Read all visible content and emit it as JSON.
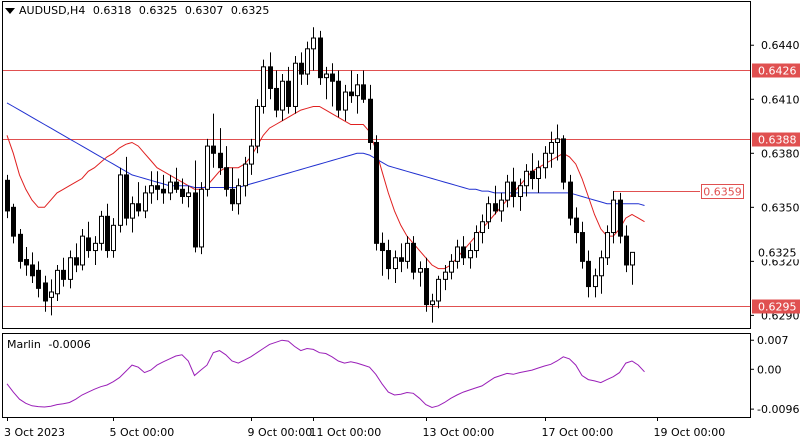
{
  "header": {
    "symbol": "AUDUSD,H4",
    "open": "0.6318",
    "high": "0.6325",
    "low": "0.6307",
    "close": "0.6325"
  },
  "indicator": {
    "name": "Marlin",
    "value": "-0.0006",
    "ticks": [
      "0.007",
      "0.00",
      "-0.0096"
    ],
    "tick_values": [
      0.007,
      0.0,
      -0.0096
    ],
    "color": "#9a1fb8"
  },
  "chart_data": {
    "type": "candlestick",
    "title": "",
    "xlabel": "",
    "ylabel": "",
    "ylim": [
      0.6283,
      0.6464
    ],
    "y_ticks": [
      "0.6440",
      "0.6410",
      "0.6380",
      "0.6350",
      "0.6320",
      "0.6290"
    ],
    "y_tick_values": [
      0.644,
      0.641,
      0.638,
      0.635,
      0.632,
      0.629
    ],
    "x_ticks": [
      "3 Oct 2023",
      "5 Oct 00:00",
      "9 Oct 00:00",
      "11 Oct 00:00",
      "13 Oct 00:00",
      "17 Oct 00:00",
      "19 Oct 00:00"
    ],
    "x_tick_bars": [
      0,
      17,
      39,
      49,
      67,
      86,
      104
    ],
    "candles": [
      [
        0.6365,
        0.6368,
        0.6344,
        0.6348
      ],
      [
        0.635,
        0.6352,
        0.633,
        0.6334
      ],
      [
        0.6335,
        0.6338,
        0.6316,
        0.632
      ],
      [
        0.6321,
        0.6328,
        0.6312,
        0.6318
      ],
      [
        0.6318,
        0.6325,
        0.6308,
        0.6312
      ],
      [
        0.6315,
        0.632,
        0.63,
        0.6305
      ],
      [
        0.6308,
        0.6312,
        0.6292,
        0.6298
      ],
      [
        0.63,
        0.631,
        0.629,
        0.6303
      ],
      [
        0.6302,
        0.6318,
        0.6298,
        0.6315
      ],
      [
        0.6315,
        0.6322,
        0.6306,
        0.631
      ],
      [
        0.631,
        0.6326,
        0.6305,
        0.6322
      ],
      [
        0.6322,
        0.633,
        0.6314,
        0.6318
      ],
      [
        0.6318,
        0.6338,
        0.6315,
        0.6334
      ],
      [
        0.6333,
        0.6342,
        0.6322,
        0.6326
      ],
      [
        0.6326,
        0.6334,
        0.6318,
        0.633
      ],
      [
        0.633,
        0.6348,
        0.6326,
        0.6345
      ],
      [
        0.6345,
        0.6352,
        0.6322,
        0.6326
      ],
      [
        0.6326,
        0.6344,
        0.6322,
        0.634
      ],
      [
        0.634,
        0.6372,
        0.6336,
        0.6368
      ],
      [
        0.6368,
        0.6378,
        0.634,
        0.6344
      ],
      [
        0.6344,
        0.6356,
        0.6336,
        0.6352
      ],
      [
        0.6352,
        0.6364,
        0.6345,
        0.6348
      ],
      [
        0.6348,
        0.6362,
        0.6344,
        0.6358
      ],
      [
        0.6358,
        0.637,
        0.6352,
        0.6362
      ],
      [
        0.6362,
        0.637,
        0.6354,
        0.636
      ],
      [
        0.636,
        0.6368,
        0.6352,
        0.6358
      ],
      [
        0.6358,
        0.6368,
        0.6354,
        0.6364
      ],
      [
        0.6364,
        0.6372,
        0.6358,
        0.636
      ],
      [
        0.636,
        0.6366,
        0.6352,
        0.6356
      ],
      [
        0.6356,
        0.6362,
        0.635,
        0.6358
      ],
      [
        0.6358,
        0.6376,
        0.6325,
        0.6328
      ],
      [
        0.6328,
        0.6364,
        0.6324,
        0.636
      ],
      [
        0.636,
        0.6388,
        0.6356,
        0.6384
      ],
      [
        0.6384,
        0.6402,
        0.6372,
        0.638
      ],
      [
        0.638,
        0.6394,
        0.6368,
        0.6372
      ],
      [
        0.6372,
        0.6384,
        0.6356,
        0.636
      ],
      [
        0.636,
        0.6372,
        0.6348,
        0.6352
      ],
      [
        0.6352,
        0.6366,
        0.6346,
        0.6362
      ],
      [
        0.6362,
        0.6378,
        0.6356,
        0.6374
      ],
      [
        0.6374,
        0.6388,
        0.6368,
        0.6384
      ],
      [
        0.6384,
        0.641,
        0.638,
        0.6406
      ],
      [
        0.6406,
        0.6432,
        0.6402,
        0.6428
      ],
      [
        0.6428,
        0.6436,
        0.641,
        0.6416
      ],
      [
        0.6416,
        0.6426,
        0.64,
        0.6404
      ],
      [
        0.6404,
        0.6424,
        0.6398,
        0.642
      ],
      [
        0.642,
        0.6428,
        0.6402,
        0.6406
      ],
      [
        0.6406,
        0.6434,
        0.6402,
        0.643
      ],
      [
        0.643,
        0.6436,
        0.6418,
        0.6424
      ],
      [
        0.6424,
        0.6442,
        0.6418,
        0.6438
      ],
      [
        0.6438,
        0.645,
        0.6426,
        0.6444
      ],
      [
        0.6444,
        0.6448,
        0.6418,
        0.6422
      ],
      [
        0.6422,
        0.6428,
        0.641,
        0.6424
      ],
      [
        0.6424,
        0.643,
        0.6406,
        0.642
      ],
      [
        0.642,
        0.6426,
        0.64,
        0.6404
      ],
      [
        0.6404,
        0.6418,
        0.6398,
        0.6414
      ],
      [
        0.6414,
        0.6426,
        0.6408,
        0.6412
      ],
      [
        0.6412,
        0.6424,
        0.6402,
        0.6418
      ],
      [
        0.6418,
        0.6426,
        0.6408,
        0.641
      ],
      [
        0.641,
        0.6418,
        0.6382,
        0.6386
      ],
      [
        0.6386,
        0.639,
        0.6326,
        0.633
      ],
      [
        0.633,
        0.6336,
        0.6312,
        0.6326
      ],
      [
        0.6326,
        0.6332,
        0.631,
        0.6316
      ],
      [
        0.6316,
        0.6326,
        0.6308,
        0.6322
      ],
      [
        0.6322,
        0.633,
        0.6314,
        0.632
      ],
      [
        0.632,
        0.6334,
        0.6316,
        0.633
      ],
      [
        0.633,
        0.6334,
        0.631,
        0.6314
      ],
      [
        0.6314,
        0.632,
        0.6306,
        0.6316
      ],
      [
        0.6316,
        0.6322,
        0.6292,
        0.6296
      ],
      [
        0.6296,
        0.6302,
        0.6286,
        0.6298
      ],
      [
        0.6298,
        0.6312,
        0.6294,
        0.631
      ],
      [
        0.631,
        0.6318,
        0.6304,
        0.6314
      ],
      [
        0.6314,
        0.6324,
        0.631,
        0.632
      ],
      [
        0.632,
        0.6332,
        0.6316,
        0.6328
      ],
      [
        0.6328,
        0.6334,
        0.6318,
        0.6322
      ],
      [
        0.6322,
        0.633,
        0.6316,
        0.6326
      ],
      [
        0.6326,
        0.634,
        0.6322,
        0.6336
      ],
      [
        0.6336,
        0.6346,
        0.633,
        0.6342
      ],
      [
        0.6342,
        0.6356,
        0.6338,
        0.6352
      ],
      [
        0.6352,
        0.6362,
        0.6346,
        0.6348
      ],
      [
        0.6348,
        0.6358,
        0.6342,
        0.6354
      ],
      [
        0.6354,
        0.6368,
        0.635,
        0.6364
      ],
      [
        0.6364,
        0.6372,
        0.635,
        0.6356
      ],
      [
        0.6356,
        0.6366,
        0.6348,
        0.6362
      ],
      [
        0.6362,
        0.6374,
        0.6356,
        0.637
      ],
      [
        0.637,
        0.638,
        0.636,
        0.6366
      ],
      [
        0.6366,
        0.6376,
        0.6358,
        0.6372
      ],
      [
        0.6372,
        0.6384,
        0.6366,
        0.638
      ],
      [
        0.638,
        0.6392,
        0.6372,
        0.6386
      ],
      [
        0.6386,
        0.6396,
        0.6376,
        0.6388
      ],
      [
        0.6388,
        0.639,
        0.636,
        0.6364
      ],
      [
        0.6364,
        0.6368,
        0.634,
        0.6344
      ],
      [
        0.6344,
        0.635,
        0.633,
        0.6336
      ],
      [
        0.6336,
        0.6342,
        0.6316,
        0.632
      ],
      [
        0.632,
        0.6326,
        0.63,
        0.6306
      ],
      [
        0.6306,
        0.6316,
        0.63,
        0.6312
      ],
      [
        0.6312,
        0.6326,
        0.6302,
        0.6322
      ],
      [
        0.6322,
        0.634,
        0.6318,
        0.6336
      ],
      [
        0.6336,
        0.6359,
        0.633,
        0.6354
      ],
      [
        0.6354,
        0.6358,
        0.633,
        0.6334
      ],
      [
        0.6334,
        0.634,
        0.6314,
        0.6318
      ],
      [
        0.6318,
        0.6325,
        0.6307,
        0.6325
      ]
    ],
    "series": [
      {
        "name": "",
        "color": "#e02020",
        "values": [
          0.639,
          0.638,
          0.6368,
          0.636,
          0.6354,
          0.635,
          0.635,
          0.6354,
          0.6358,
          0.636,
          0.6362,
          0.6364,
          0.6366,
          0.637,
          0.6372,
          0.6375,
          0.6378,
          0.638,
          0.6383,
          0.6385,
          0.6386,
          0.6384,
          0.638,
          0.6376,
          0.6372,
          0.637,
          0.6368,
          0.6366,
          0.6364,
          0.6362,
          0.636,
          0.636,
          0.6362,
          0.6366,
          0.637,
          0.6372,
          0.6372,
          0.6372,
          0.6374,
          0.6378,
          0.6384,
          0.639,
          0.6394,
          0.6396,
          0.6398,
          0.64,
          0.6402,
          0.6404,
          0.6405,
          0.6406,
          0.6406,
          0.6404,
          0.6402,
          0.64,
          0.6398,
          0.6396,
          0.6396,
          0.6396,
          0.6392,
          0.6382,
          0.637,
          0.6358,
          0.6348,
          0.634,
          0.6334,
          0.633,
          0.6326,
          0.6322,
          0.6318,
          0.6316,
          0.6316,
          0.6318,
          0.6322,
          0.6326,
          0.633,
          0.6334,
          0.6338,
          0.6342,
          0.6346,
          0.635,
          0.6354,
          0.6358,
          0.6362,
          0.6366,
          0.637,
          0.6372,
          0.6374,
          0.6376,
          0.6378,
          0.638,
          0.6378,
          0.6374,
          0.6366,
          0.6356,
          0.6346,
          0.6338,
          0.6334,
          0.6334,
          0.6338,
          0.6344,
          0.6346,
          0.6344,
          0.6342
        ]
      },
      {
        "name": "",
        "color": "#2030d0",
        "values": [
          0.6408,
          0.6406,
          0.6404,
          0.6402,
          0.64,
          0.6398,
          0.6396,
          0.6394,
          0.6392,
          0.639,
          0.6388,
          0.6386,
          0.6384,
          0.6382,
          0.638,
          0.6378,
          0.6376,
          0.6374,
          0.6372,
          0.637,
          0.6368,
          0.6367,
          0.6366,
          0.6365,
          0.6364,
          0.6363,
          0.6362,
          0.6362,
          0.6362,
          0.6362,
          0.6361,
          0.6361,
          0.6361,
          0.6361,
          0.6361,
          0.6361,
          0.6361,
          0.6361,
          0.6362,
          0.6363,
          0.6364,
          0.6365,
          0.6366,
          0.6367,
          0.6368,
          0.6369,
          0.637,
          0.6371,
          0.6372,
          0.6373,
          0.6374,
          0.6375,
          0.6376,
          0.6377,
          0.6378,
          0.6379,
          0.638,
          0.638,
          0.6379,
          0.6377,
          0.6375,
          0.6373,
          0.6372,
          0.6371,
          0.637,
          0.6369,
          0.6368,
          0.6367,
          0.6366,
          0.6365,
          0.6364,
          0.6363,
          0.6362,
          0.6361,
          0.636,
          0.636,
          0.6359,
          0.6359,
          0.6358,
          0.6358,
          0.6358,
          0.6358,
          0.6358,
          0.6358,
          0.6358,
          0.6358,
          0.6358,
          0.6358,
          0.6358,
          0.6358,
          0.6358,
          0.6357,
          0.6356,
          0.6355,
          0.6354,
          0.6353,
          0.6352,
          0.6352,
          0.6352,
          0.6352,
          0.6352,
          0.6352,
          0.6351
        ]
      }
    ],
    "marlin": [
      -0.0035,
      -0.0055,
      -0.0072,
      -0.0082,
      -0.0088,
      -0.009,
      -0.0091,
      -0.0089,
      -0.0085,
      -0.0083,
      -0.008,
      -0.0072,
      -0.0062,
      -0.0055,
      -0.0048,
      -0.0042,
      -0.0038,
      -0.003,
      -0.002,
      -0.0005,
      0.001,
      0.0005,
      -0.0008,
      -0.0002,
      0.001,
      0.0018,
      0.0025,
      0.0032,
      0.0035,
      0.002,
      -0.0015,
      -0.0002,
      0.001,
      0.004,
      0.0045,
      0.0035,
      0.002,
      0.0015,
      0.0022,
      0.003,
      0.004,
      0.005,
      0.006,
      0.0065,
      0.007,
      0.0068,
      0.0055,
      0.0045,
      0.005,
      0.0048,
      0.004,
      0.0038,
      0.003,
      0.002,
      0.0015,
      0.0018,
      0.0015,
      0.001,
      0.0005,
      -0.0012,
      -0.0035,
      -0.0055,
      -0.0062,
      -0.006,
      -0.0056,
      -0.0058,
      -0.007,
      -0.0085,
      -0.0092,
      -0.0088,
      -0.008,
      -0.007,
      -0.0062,
      -0.0055,
      -0.005,
      -0.0045,
      -0.004,
      -0.003,
      -0.002,
      -0.0015,
      -0.001,
      -0.0012,
      -0.0008,
      -0.0005,
      -0.0002,
      0.0003,
      0.0008,
      0.0012,
      0.002,
      0.003,
      0.0025,
      0.001,
      -0.0015,
      -0.0025,
      -0.0028,
      -0.0032,
      -0.0025,
      -0.0018,
      -0.0008,
      0.0015,
      0.002,
      0.001,
      -0.0006
    ],
    "levels": [
      {
        "value": 0.6426,
        "label": "0.6426",
        "color": "#e05050",
        "kind": "line"
      },
      {
        "value": 0.6388,
        "label": "0.6388",
        "color": "#e05050",
        "kind": "line"
      },
      {
        "value": 0.6359,
        "label": "0.6359",
        "color": "#e05050",
        "kind": "segment"
      },
      {
        "value": 0.6295,
        "label": "0.6295",
        "color": "#e05050",
        "kind": "line"
      }
    ],
    "current_price": {
      "value": 0.6325,
      "label": "0.6325"
    },
    "grid": false,
    "up_color": "#ffffff",
    "down_color": "#000000"
  }
}
